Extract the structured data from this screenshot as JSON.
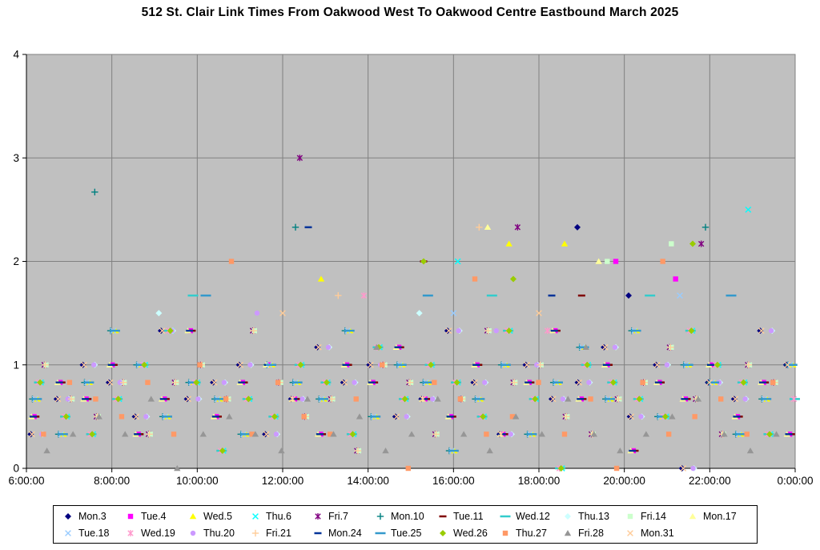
{
  "chart_data": {
    "type": "scatter",
    "title": "512 St. Clair Link Times From Oakwood West To Oakwood Centre Eastbound March 2025",
    "xlabel": "",
    "ylabel": "",
    "plot_bg": "#C0C0C0",
    "grid_color": "#808080",
    "grid": true,
    "legend_position": "bottom",
    "x_axis": {
      "min": 6,
      "max": 24,
      "tick_hours": [
        6,
        8,
        10,
        12,
        14,
        16,
        18,
        20,
        22,
        24
      ],
      "tick_labels": [
        "6:00:00",
        "8:00:00",
        "10:00:00",
        "12:00:00",
        "14:00:00",
        "16:00:00",
        "18:00:00",
        "20:00:00",
        "22:00:00",
        "0:00:00"
      ],
      "grid_hours": [
        8,
        10,
        12,
        14,
        16,
        18,
        20,
        22
      ]
    },
    "y_axis": {
      "min": 0,
      "max": 4,
      "tick_values": [
        0,
        1,
        2,
        3,
        4
      ],
      "tick_labels": [
        "0",
        "1",
        "2",
        "3",
        "4"
      ],
      "grid_values": [
        1,
        2,
        3
      ]
    },
    "series": [
      {
        "name": "Mon.3",
        "color": "#000080",
        "marker": "diamond",
        "x_start": 6.1,
        "x_step": 0.61,
        "y": [
          0.33,
          0.67,
          1,
          0.83,
          0.5,
          1.33,
          0.67,
          0.83,
          1,
          0.33,
          0.67,
          1.17,
          0.83,
          1,
          0.5,
          0.67,
          1.33,
          0.83,
          0.33,
          1,
          0.67,
          0.83,
          1.17,
          0.5,
          1,
          0,
          0.83,
          0.67,
          1.33,
          1
        ],
        "extra": [
          [
            18.9,
            2.33
          ],
          [
            20.1,
            1.67
          ]
        ]
      },
      {
        "name": "Tue.4",
        "color": "#FF00FF",
        "marker": "square",
        "x_start": 6.18,
        "x_step": 0.61,
        "y": [
          0.5,
          0.83,
          0.67,
          1,
          0.33,
          0.67,
          1.33,
          0.5,
          0.83,
          1,
          0.67,
          0.33,
          1,
          0.83,
          1.17,
          0.67,
          0.5,
          1,
          0.33,
          0.83,
          1.33,
          0.67,
          1,
          0.17,
          0.83,
          0.67,
          1,
          0.5,
          0.83,
          0.33
        ],
        "extra": [
          [
            19.8,
            2
          ],
          [
            21.2,
            1.83
          ]
        ]
      },
      {
        "name": "Wed.5",
        "color": "#FFFF00",
        "marker": "triangle",
        "x_start": 6.26,
        "x_step": 0.61,
        "y": [
          0.67,
          0.33,
          0.83,
          1.33,
          1,
          0.5,
          0.83,
          0.67,
          0.33,
          1,
          0.83,
          0.67,
          1.33,
          0.5,
          1,
          0.83,
          0.17,
          0.67,
          1,
          0.33,
          0.83,
          1.17,
          0.67,
          1.33,
          0.5,
          1,
          0.83,
          0.33,
          0.67,
          1
        ],
        "extra": [
          [
            12.9,
            1.83
          ],
          [
            17.3,
            2.17
          ],
          [
            18.6,
            2.17
          ]
        ]
      },
      {
        "name": "Thu.6",
        "color": "#00FFFF",
        "marker": "x",
        "x_start": 6.34,
        "x_step": 0.61,
        "y": [
          0.83,
          0.5,
          0.33,
          0.67,
          1,
          1.33,
          0.83,
          0.17,
          0.67,
          0.5,
          1,
          0.83,
          0.33,
          1.17,
          0.67,
          1,
          0.83,
          0.5,
          1.33,
          0.67,
          0,
          1,
          0.83,
          0.67,
          0.5,
          1.33,
          1,
          0.83,
          0.33,
          0.67
        ],
        "extra": [
          [
            22.9,
            2.5
          ],
          [
            16.1,
            2
          ]
        ]
      },
      {
        "name": "Fri.7",
        "color": "#800080",
        "marker": "star",
        "x_start": 6.42,
        "x_step": 0.61,
        "y": [
          1,
          0.67,
          0.5,
          0.83,
          0.33,
          0.83,
          1,
          0.67,
          1.33,
          0.83,
          0.5,
          0.67,
          0.17,
          1,
          0.83,
          0.33,
          0.67,
          1.33,
          0.83,
          1,
          0.5,
          0.33,
          0.67,
          0.83,
          1.17,
          0.67,
          0.33,
          1,
          0.83,
          0.5
        ],
        "extra": [
          [
            12.4,
            3
          ],
          [
            17.5,
            2.33
          ],
          [
            21.8,
            2.17
          ]
        ]
      },
      {
        "name": "Mon.10",
        "color": "#008080",
        "marker": "plus",
        "x_start": 6.14,
        "x_step": 0.61,
        "y": [
          0.67,
          0.33,
          0.83,
          1.33,
          1,
          0.5,
          0.83,
          0.67,
          0.33,
          1,
          0.83,
          0.67,
          1.33,
          0.5,
          1,
          0.83,
          0.17,
          0.67,
          1,
          0.33,
          0.83,
          1.17,
          0.67,
          1.33,
          0.5,
          1,
          0.83,
          0.33,
          0.67,
          1
        ],
        "extra": [
          [
            7.6,
            2.67
          ],
          [
            12.3,
            2.33
          ],
          [
            21.9,
            2.33
          ]
        ]
      },
      {
        "name": "Tue.11",
        "color": "#800000",
        "marker": "dash",
        "x_start": 6.22,
        "x_step": 0.61,
        "y": [
          0.5,
          0.83,
          0.67,
          1,
          0.33,
          0.67,
          1.33,
          0.5,
          0.83,
          1,
          0.67,
          0.33,
          1,
          0.83,
          1.17,
          0.67,
          0.5,
          1,
          0.33,
          0.83,
          1.33,
          0.67,
          1,
          0.17,
          0.83,
          0.67,
          1,
          0.5,
          0.83,
          0.33
        ],
        "extra": [
          [
            15.3,
            2
          ],
          [
            19,
            1.67
          ]
        ]
      },
      {
        "name": "Wed.12",
        "color": "#33CCCC",
        "marker": "longdash",
        "x_start": 6.3,
        "x_step": 0.61,
        "y": [
          0.83,
          0.5,
          0.33,
          0.67,
          1,
          1.33,
          0.83,
          0.17,
          0.67,
          0.5,
          1,
          0.83,
          0.33,
          1.17,
          0.67,
          1,
          0.83,
          0.5,
          1.33,
          0.67,
          0,
          1,
          0.83,
          0.67,
          0.5,
          1.33,
          1,
          0.83,
          0.33,
          0.67
        ],
        "extra": [
          [
            9.9,
            1.67
          ],
          [
            16.9,
            1.67
          ],
          [
            20.6,
            1.67
          ]
        ]
      },
      {
        "name": "Thu.13",
        "color": "#CCFFFF",
        "marker": "diamond",
        "x_start": 6.38,
        "x_step": 0.61,
        "y": [
          0.33,
          0.67,
          1,
          0.83,
          0.5,
          1.33,
          0.67,
          0.83,
          1,
          0.33,
          0.67,
          1.17,
          0.83,
          1,
          0.5,
          0.67,
          1.33,
          0.83,
          0.33,
          1,
          0.67,
          0.83,
          1.17,
          0.5,
          1,
          0,
          0.83,
          0.67,
          1.33,
          1
        ],
        "extra": [
          [
            9.1,
            1.5
          ],
          [
            15.2,
            1.5
          ]
        ]
      },
      {
        "name": "Fri.14",
        "color": "#CCFFCC",
        "marker": "square",
        "x_start": 6.46,
        "x_step": 0.61,
        "y": [
          1,
          0.67,
          0.5,
          0.83,
          0.33,
          0.83,
          1,
          0.67,
          1.33,
          0.83,
          0.5,
          0.67,
          0.17,
          1,
          0.83,
          0.33,
          0.67,
          1.33,
          0.83,
          1,
          0.5,
          0.33,
          0.67,
          0.83,
          1.17,
          0.67,
          0.33,
          1,
          0.83,
          0.5
        ],
        "extra": [
          [
            19.6,
            2
          ],
          [
            21.1,
            2.17
          ]
        ]
      },
      {
        "name": "Mon.17",
        "color": "#FFFF99",
        "marker": "triangle",
        "x_start": 6.12,
        "x_step": 0.61,
        "y": [
          0.5,
          0.83,
          0.67,
          1,
          0.33,
          0.67,
          1.33,
          0.5,
          0.83,
          1,
          0.67,
          0.33,
          1,
          0.83,
          1.17,
          0.67,
          0.5,
          1,
          0.33,
          0.83,
          1.33,
          0.67,
          1,
          0.17,
          0.83,
          0.67,
          1,
          0.5,
          0.83,
          0.33
        ],
        "extra": [
          [
            16.8,
            2.33
          ],
          [
            19.4,
            2
          ]
        ]
      },
      {
        "name": "Tue.18",
        "color": "#99CCFF",
        "marker": "x",
        "x_start": 6.2,
        "x_step": 0.61,
        "y": [
          0.67,
          0.33,
          0.83,
          1.33,
          1,
          0.5,
          0.83,
          0.67,
          0.33,
          1,
          0.83,
          0.67,
          1.33,
          0.5,
          1,
          0.83,
          0.17,
          0.67,
          1,
          0.33,
          0.83,
          1.17,
          0.67,
          1.33,
          0.5,
          1,
          0.83,
          0.33,
          0.67,
          1
        ],
        "extra": [
          [
            16,
            1.5
          ],
          [
            21.3,
            1.67
          ]
        ]
      },
      {
        "name": "Wed.19",
        "color": "#FF99CC",
        "marker": "star",
        "x_start": 6.28,
        "x_step": 0.61,
        "y": [
          0.83,
          0.5,
          0.33,
          0.67,
          1,
          1.33,
          0.83,
          0.17,
          0.67,
          0.5,
          1,
          0.83,
          0.33,
          1.17,
          0.67,
          1,
          0.83,
          0.5,
          1.33,
          0.67,
          0,
          1,
          0.83,
          0.67,
          0.5,
          1.33,
          1,
          0.83,
          0.33,
          0.67
        ],
        "extra": [
          [
            13.9,
            1.67
          ],
          [
            18.2,
            1.33
          ]
        ]
      },
      {
        "name": "Thu.20",
        "color": "#CC99FF",
        "marker": "circle",
        "x_start": 6.36,
        "x_step": 0.61,
        "y": [
          0.33,
          0.67,
          1,
          0.83,
          0.5,
          1.33,
          0.67,
          0.83,
          1,
          0.33,
          0.67,
          1.17,
          0.83,
          1,
          0.5,
          0.67,
          1.33,
          0.83,
          0.33,
          1,
          0.67,
          0.83,
          1.17,
          0.5,
          1,
          0,
          0.83,
          0.67,
          1.33,
          1
        ],
        "extra": [
          [
            11.4,
            1.5
          ],
          [
            17,
            1.33
          ]
        ]
      },
      {
        "name": "Fri.21",
        "color": "#FFCC99",
        "marker": "plus",
        "x_start": 6.44,
        "x_step": 0.61,
        "y": [
          1,
          0.67,
          0.5,
          0.83,
          0.33,
          0.83,
          1,
          0.67,
          1.33,
          0.83,
          0.5,
          0.67,
          0.17,
          1,
          0.83,
          0.33,
          0.67,
          1.33,
          0.83,
          1,
          0.5,
          0.33,
          0.67,
          0.83,
          1.17,
          0.67,
          0.33,
          1,
          0.83,
          0.5
        ],
        "extra": [
          [
            13.3,
            1.67
          ],
          [
            16.6,
            2.33
          ]
        ]
      },
      {
        "name": "Mon.24",
        "color": "#003399",
        "marker": "dash",
        "x_start": 6.16,
        "x_step": 0.61,
        "y": [
          0.5,
          0.83,
          0.67,
          1,
          0.33,
          0.67,
          1.33,
          0.5,
          0.83,
          1,
          0.67,
          0.33,
          1,
          0.83,
          1.17,
          0.67,
          0.5,
          1,
          0.33,
          0.83,
          1.33,
          0.67,
          1,
          0.17,
          0.83,
          0.67,
          1,
          0.5,
          0.83,
          0.33
        ],
        "extra": [
          [
            12.6,
            2.33
          ],
          [
            18.3,
            1.67
          ]
        ]
      },
      {
        "name": "Tue.25",
        "color": "#3399CC",
        "marker": "longdash",
        "x_start": 6.24,
        "x_step": 0.61,
        "y": [
          0.67,
          0.33,
          0.83,
          1.33,
          1,
          0.5,
          0.83,
          0.67,
          0.33,
          1,
          0.83,
          0.67,
          1.33,
          0.5,
          1,
          0.83,
          0.17,
          0.67,
          1,
          0.33,
          0.83,
          1.17,
          0.67,
          1.33,
          0.5,
          1,
          0.83,
          0.33,
          0.67,
          1
        ],
        "extra": [
          [
            10.2,
            1.67
          ],
          [
            15.4,
            1.67
          ],
          [
            22.5,
            1.67
          ]
        ]
      },
      {
        "name": "Wed.26",
        "color": "#99CC00",
        "marker": "diamond",
        "x_start": 6.32,
        "x_step": 0.61,
        "y": [
          0.83,
          0.5,
          0.33,
          0.67,
          1,
          1.33,
          0.83,
          0.17,
          0.67,
          0.5,
          1,
          0.83,
          0.33,
          1.17,
          0.67,
          1,
          0.83,
          0.5,
          1.33,
          0.67,
          0,
          1,
          0.83,
          0.67,
          0.5,
          1.33,
          1,
          0.83,
          0.33,
          0.67
        ],
        "extra": [
          [
            15.3,
            2
          ],
          [
            17.4,
            1.83
          ],
          [
            21.6,
            2.17
          ]
        ]
      },
      {
        "name": "Thu.27",
        "color": "#FF9966",
        "marker": "square",
        "x_start": 6.4,
        "x_step": 0.61,
        "y": [
          0.33,
          0.83,
          0.67,
          0.5,
          0.83,
          0.33,
          1,
          0.67,
          0.33,
          0.83,
          0.5,
          0.33,
          0.67,
          1,
          0,
          0.83,
          0.67,
          0.33,
          0.5,
          0.83,
          0.33,
          0.67,
          0,
          0.83,
          0.33,
          0.5,
          0.67,
          0.33,
          0.83,
          0.33
        ],
        "extra": [
          [
            10.8,
            2
          ],
          [
            16.5,
            1.83
          ],
          [
            20.9,
            2
          ]
        ]
      },
      {
        "name": "Fri.28",
        "color": "#969696",
        "marker": "triangle",
        "x_start": 6.48,
        "x_step": 0.61,
        "y": [
          0.17,
          0.33,
          0.5,
          0.33,
          0.67,
          0,
          0.33,
          0.5,
          0.33,
          0.17,
          0.67,
          0.33,
          0.5,
          0.17,
          0.33,
          0.67,
          0.33,
          0.17,
          0.5,
          0.33,
          0.67,
          0.33,
          0.17,
          0.33,
          0.5,
          0.67,
          0.33,
          0.17,
          0.33,
          0.5
        ],
        "extra": [
          [
            14.2,
            1.17
          ],
          [
            19.1,
            1.17
          ]
        ]
      },
      {
        "name": "Mon.31",
        "color": "#FFCC99",
        "marker": "x",
        "x_start": 6.13,
        "x_step": 0.61,
        "y": [
          0.33,
          0.67,
          1,
          0.83,
          0.5,
          1.33,
          0.67,
          0.83,
          1,
          0.33,
          0.67,
          1.17,
          0.83,
          1,
          0.5,
          0.67,
          1.33,
          0.83,
          0.33,
          1,
          0.67,
          0.83,
          1.17,
          0.5,
          1,
          0,
          0.83,
          0.67,
          1.33,
          1
        ],
        "extra": [
          [
            12,
            1.5
          ],
          [
            18,
            1.5
          ]
        ]
      }
    ]
  }
}
